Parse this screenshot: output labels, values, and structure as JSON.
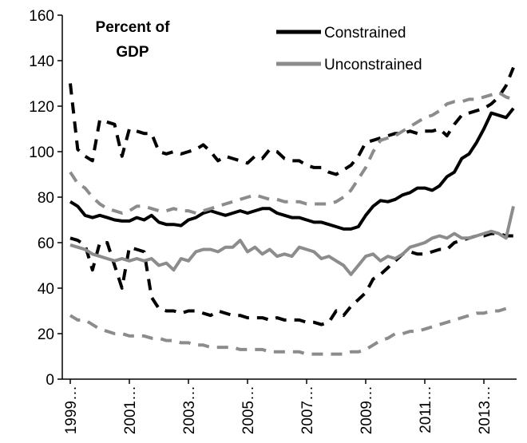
{
  "chart_data": {
    "type": "line",
    "annotation": [
      "Percent of",
      "GDP"
    ],
    "categories": [
      "1999…",
      null,
      null,
      null,
      null,
      null,
      null,
      null,
      "2001…",
      null,
      null,
      null,
      null,
      null,
      null,
      null,
      "2003…",
      null,
      null,
      null,
      null,
      null,
      null,
      null,
      "2005…",
      null,
      null,
      null,
      null,
      null,
      null,
      null,
      "2007…",
      null,
      null,
      null,
      null,
      null,
      null,
      null,
      "2009…",
      null,
      null,
      null,
      null,
      null,
      null,
      null,
      "2011…",
      null,
      null,
      null,
      null,
      null,
      null,
      null,
      "2013…",
      null,
      null,
      null,
      null
    ],
    "ylim": [
      0,
      160
    ],
    "yticks": [
      0,
      20,
      40,
      60,
      80,
      100,
      120,
      140,
      160
    ],
    "series": [
      {
        "name": "Constrained",
        "color": "#000000",
        "values": [
          78,
          76,
          72,
          71,
          72,
          71,
          70,
          69.5,
          69.5,
          71,
          70,
          72,
          69,
          68,
          68,
          67.5,
          70,
          71,
          73,
          74,
          73,
          72,
          73,
          74,
          73,
          74,
          75,
          75,
          73,
          72,
          71,
          71,
          70,
          69,
          69,
          68,
          67,
          66,
          66,
          67,
          72,
          76,
          78.5,
          78,
          79,
          81,
          82,
          84,
          84,
          83,
          85,
          89,
          91,
          97,
          99,
          104,
          110,
          117,
          116,
          115,
          119
        ],
        "upper": [
          130,
          101,
          98,
          96,
          114,
          113,
          112,
          98,
          110,
          109,
          108,
          108,
          100,
          99,
          100,
          99,
          100,
          101,
          103,
          100,
          96,
          98,
          97,
          96,
          95,
          98,
          97,
          101,
          100,
          97,
          96,
          96,
          94,
          93,
          93,
          91,
          90,
          92,
          94,
          98,
          104,
          105,
          106,
          107,
          108,
          108,
          109,
          108,
          109,
          109,
          110,
          107,
          112,
          116,
          117,
          118,
          119,
          121,
          124,
          129,
          137
        ],
        "lower": [
          62,
          61,
          59,
          48,
          60,
          60,
          50,
          40,
          58,
          57,
          56,
          36,
          31,
          30,
          30,
          29,
          30,
          30,
          29,
          28,
          30,
          29,
          28,
          28,
          27,
          27,
          27,
          26,
          27,
          26,
          26,
          26,
          25,
          25,
          24,
          25,
          30,
          28,
          32,
          35,
          38,
          44,
          46,
          49,
          52,
          55,
          56,
          55,
          55,
          56,
          57,
          57,
          60,
          61,
          62,
          63,
          63,
          64,
          64,
          63,
          63
        ]
      },
      {
        "name": "Unconstrained",
        "color": "#8c8c8c",
        "values": [
          59,
          58,
          57,
          55,
          54,
          53,
          52,
          53,
          52,
          53,
          52,
          53,
          50,
          51,
          48,
          53,
          52,
          56,
          57,
          57,
          56,
          58,
          58,
          61,
          56,
          58,
          55,
          57,
          54,
          55,
          54,
          58,
          57,
          56,
          53,
          54,
          52,
          50,
          46,
          50,
          54,
          55,
          52,
          54,
          53,
          55,
          58,
          59,
          60,
          62,
          63,
          62,
          64,
          62,
          62,
          63,
          64,
          65,
          64,
          62,
          76
        ],
        "upper": [
          91,
          86,
          84,
          80,
          77,
          75,
          74,
          73,
          74,
          76,
          76,
          75,
          74,
          74,
          75,
          74,
          74,
          73,
          74,
          75,
          76,
          77,
          78,
          79,
          80,
          81,
          80,
          79,
          79,
          78,
          78,
          78,
          77,
          77,
          77,
          77,
          78,
          80,
          83,
          88,
          93,
          100,
          105,
          106,
          107,
          109,
          111,
          113,
          115,
          116,
          118,
          121,
          122,
          122,
          123,
          123,
          124,
          125,
          126,
          124,
          123
        ],
        "lower": [
          28,
          26,
          26,
          24,
          22,
          21,
          20,
          20,
          19,
          19,
          19,
          18,
          18,
          17,
          17,
          16,
          16,
          15,
          15,
          14,
          14,
          14,
          14,
          13,
          13,
          13,
          13,
          12,
          12,
          12,
          12,
          12,
          11,
          11,
          11,
          11,
          11,
          11,
          12,
          12,
          13,
          15,
          17,
          18,
          20,
          20,
          21,
          21,
          22,
          23,
          24,
          25,
          26,
          27,
          28,
          29,
          29,
          30,
          30,
          31,
          32
        ]
      }
    ]
  }
}
